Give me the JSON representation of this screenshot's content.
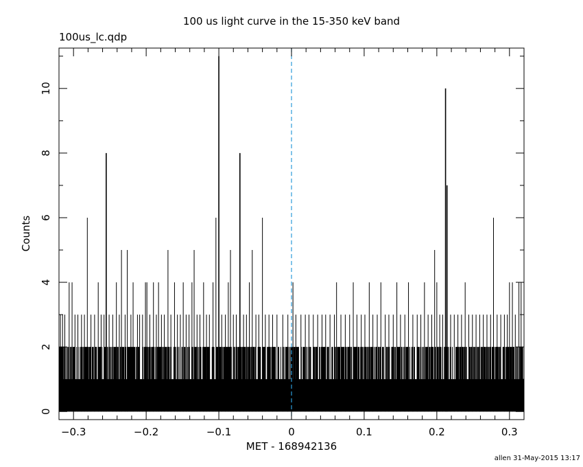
{
  "chart_data": {
    "type": "bar",
    "title": "100 us light curve in the 15-350 keV band",
    "file_label": "100us_lc.qdp",
    "xlabel": "MET - 168942136",
    "ylabel": "Counts",
    "credit": "allen 31-May-2015 13:17",
    "xlim": [
      -0.32,
      0.32
    ],
    "ylim": [
      -0.25,
      11.25
    ],
    "x_ticks": [
      -0.3,
      -0.2,
      -0.1,
      0,
      0.1,
      0.2,
      0.3
    ],
    "x_tick_labels": [
      "−0.3",
      "−0.2",
      "−0.1",
      "0",
      "0.1",
      "0.2",
      "0.3"
    ],
    "y_ticks": [
      0,
      2,
      4,
      6,
      8,
      10
    ],
    "y_tick_labels": [
      "0",
      "2",
      "4",
      "6",
      "8",
      "10"
    ],
    "baseline_note": "Nearly every bin between the peaks shows 0–2 counts, with frequent bins reaching 2.",
    "trigger_line": {
      "x": 0,
      "color": "#2b9bd8",
      "style": "dashed"
    },
    "bar_color": "#000000",
    "spikes": [
      {
        "x": -0.318,
        "y": 3
      },
      {
        "x": -0.315,
        "y": 3
      },
      {
        "x": -0.312,
        "y": 3
      },
      {
        "x": -0.306,
        "y": 4
      },
      {
        "x": -0.302,
        "y": 4
      },
      {
        "x": -0.298,
        "y": 3
      },
      {
        "x": -0.294,
        "y": 3
      },
      {
        "x": -0.289,
        "y": 3
      },
      {
        "x": -0.285,
        "y": 3
      },
      {
        "x": -0.281,
        "y": 6
      },
      {
        "x": -0.276,
        "y": 3
      },
      {
        "x": -0.271,
        "y": 3
      },
      {
        "x": -0.266,
        "y": 4
      },
      {
        "x": -0.262,
        "y": 3
      },
      {
        "x": -0.258,
        "y": 3
      },
      {
        "x": -0.255,
        "y": 8
      },
      {
        "x": -0.251,
        "y": 3
      },
      {
        "x": -0.246,
        "y": 3
      },
      {
        "x": -0.241,
        "y": 4
      },
      {
        "x": -0.237,
        "y": 3
      },
      {
        "x": -0.234,
        "y": 5
      },
      {
        "x": -0.229,
        "y": 3
      },
      {
        "x": -0.226,
        "y": 5
      },
      {
        "x": -0.221,
        "y": 3
      },
      {
        "x": -0.218,
        "y": 4
      },
      {
        "x": -0.212,
        "y": 3
      },
      {
        "x": -0.209,
        "y": 3
      },
      {
        "x": -0.205,
        "y": 3
      },
      {
        "x": -0.201,
        "y": 4
      },
      {
        "x": -0.199,
        "y": 4
      },
      {
        "x": -0.195,
        "y": 3
      },
      {
        "x": -0.19,
        "y": 4
      },
      {
        "x": -0.186,
        "y": 3
      },
      {
        "x": -0.183,
        "y": 4
      },
      {
        "x": -0.179,
        "y": 3
      },
      {
        "x": -0.175,
        "y": 3
      },
      {
        "x": -0.17,
        "y": 5
      },
      {
        "x": -0.166,
        "y": 3
      },
      {
        "x": -0.161,
        "y": 4
      },
      {
        "x": -0.157,
        "y": 3
      },
      {
        "x": -0.153,
        "y": 3
      },
      {
        "x": -0.149,
        "y": 4
      },
      {
        "x": -0.145,
        "y": 3
      },
      {
        "x": -0.141,
        "y": 3
      },
      {
        "x": -0.137,
        "y": 4
      },
      {
        "x": -0.134,
        "y": 5
      },
      {
        "x": -0.13,
        "y": 3
      },
      {
        "x": -0.126,
        "y": 3
      },
      {
        "x": -0.121,
        "y": 4
      },
      {
        "x": -0.117,
        "y": 3
      },
      {
        "x": -0.113,
        "y": 3
      },
      {
        "x": -0.108,
        "y": 4
      },
      {
        "x": -0.104,
        "y": 6
      },
      {
        "x": -0.1,
        "y": 11
      },
      {
        "x": -0.096,
        "y": 3
      },
      {
        "x": -0.091,
        "y": 3
      },
      {
        "x": -0.087,
        "y": 4
      },
      {
        "x": -0.084,
        "y": 5
      },
      {
        "x": -0.08,
        "y": 3
      },
      {
        "x": -0.076,
        "y": 3
      },
      {
        "x": -0.071,
        "y": 8
      },
      {
        "x": -0.066,
        "y": 3
      },
      {
        "x": -0.062,
        "y": 3
      },
      {
        "x": -0.058,
        "y": 4
      },
      {
        "x": -0.054,
        "y": 5
      },
      {
        "x": -0.049,
        "y": 3
      },
      {
        "x": -0.045,
        "y": 3
      },
      {
        "x": -0.04,
        "y": 6
      },
      {
        "x": -0.036,
        "y": 3
      },
      {
        "x": -0.031,
        "y": 3
      },
      {
        "x": -0.026,
        "y": 3
      },
      {
        "x": -0.02,
        "y": 3
      },
      {
        "x": -0.012,
        "y": 3
      },
      {
        "x": -0.005,
        "y": 3
      },
      {
        "x": 0.002,
        "y": 4
      },
      {
        "x": 0.006,
        "y": 3
      },
      {
        "x": 0.013,
        "y": 3
      },
      {
        "x": 0.019,
        "y": 3
      },
      {
        "x": 0.024,
        "y": 3
      },
      {
        "x": 0.03,
        "y": 3
      },
      {
        "x": 0.036,
        "y": 3
      },
      {
        "x": 0.042,
        "y": 3
      },
      {
        "x": 0.047,
        "y": 3
      },
      {
        "x": 0.053,
        "y": 3
      },
      {
        "x": 0.059,
        "y": 3
      },
      {
        "x": 0.062,
        "y": 4
      },
      {
        "x": 0.068,
        "y": 3
      },
      {
        "x": 0.074,
        "y": 3
      },
      {
        "x": 0.08,
        "y": 3
      },
      {
        "x": 0.085,
        "y": 4
      },
      {
        "x": 0.09,
        "y": 3
      },
      {
        "x": 0.096,
        "y": 3
      },
      {
        "x": 0.101,
        "y": 3
      },
      {
        "x": 0.107,
        "y": 4
      },
      {
        "x": 0.112,
        "y": 3
      },
      {
        "x": 0.118,
        "y": 3
      },
      {
        "x": 0.123,
        "y": 4
      },
      {
        "x": 0.129,
        "y": 3
      },
      {
        "x": 0.134,
        "y": 3
      },
      {
        "x": 0.14,
        "y": 3
      },
      {
        "x": 0.145,
        "y": 4
      },
      {
        "x": 0.15,
        "y": 3
      },
      {
        "x": 0.156,
        "y": 3
      },
      {
        "x": 0.161,
        "y": 4
      },
      {
        "x": 0.167,
        "y": 3
      },
      {
        "x": 0.173,
        "y": 3
      },
      {
        "x": 0.178,
        "y": 3
      },
      {
        "x": 0.183,
        "y": 4
      },
      {
        "x": 0.188,
        "y": 3
      },
      {
        "x": 0.193,
        "y": 3
      },
      {
        "x": 0.197,
        "y": 5
      },
      {
        "x": 0.2,
        "y": 4
      },
      {
        "x": 0.204,
        "y": 3
      },
      {
        "x": 0.208,
        "y": 3
      },
      {
        "x": 0.212,
        "y": 10
      },
      {
        "x": 0.214,
        "y": 7
      },
      {
        "x": 0.219,
        "y": 3
      },
      {
        "x": 0.224,
        "y": 3
      },
      {
        "x": 0.229,
        "y": 3
      },
      {
        "x": 0.234,
        "y": 3
      },
      {
        "x": 0.239,
        "y": 4
      },
      {
        "x": 0.244,
        "y": 3
      },
      {
        "x": 0.249,
        "y": 3
      },
      {
        "x": 0.254,
        "y": 3
      },
      {
        "x": 0.259,
        "y": 3
      },
      {
        "x": 0.264,
        "y": 3
      },
      {
        "x": 0.269,
        "y": 3
      },
      {
        "x": 0.274,
        "y": 3
      },
      {
        "x": 0.278,
        "y": 6
      },
      {
        "x": 0.283,
        "y": 3
      },
      {
        "x": 0.288,
        "y": 3
      },
      {
        "x": 0.293,
        "y": 3
      },
      {
        "x": 0.297,
        "y": 3
      },
      {
        "x": 0.3,
        "y": 4
      },
      {
        "x": 0.304,
        "y": 4
      },
      {
        "x": 0.308,
        "y": 3
      },
      {
        "x": 0.313,
        "y": 4
      },
      {
        "x": 0.316,
        "y": 4
      }
    ]
  }
}
